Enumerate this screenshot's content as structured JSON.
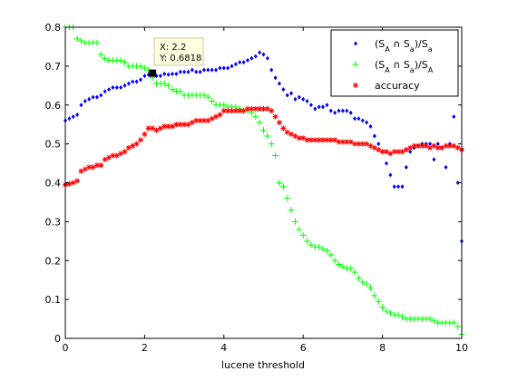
{
  "chart_data": {
    "type": "scatter",
    "xlabel": "lucene threshold",
    "xlim": [
      0,
      10
    ],
    "ylim": [
      0,
      0.8
    ],
    "xticks": [
      0,
      2,
      4,
      6,
      8,
      10
    ],
    "yticks": [
      0,
      0.1,
      0.2,
      0.3,
      0.4,
      0.5,
      0.6,
      0.7,
      0.8
    ],
    "legend_position": "top-right",
    "series": [
      {
        "name": "(S_A ∩ S_a)/S_a",
        "color": "#0000ff",
        "marker": "diamond",
        "x": [
          0.0,
          0.1,
          0.2,
          0.3,
          0.4,
          0.5,
          0.6,
          0.7,
          0.8,
          0.9,
          1.0,
          1.1,
          1.2,
          1.3,
          1.4,
          1.5,
          1.6,
          1.7,
          1.8,
          1.9,
          2.0,
          2.1,
          2.2,
          2.3,
          2.4,
          2.5,
          2.6,
          2.7,
          2.8,
          2.9,
          3.0,
          3.1,
          3.2,
          3.3,
          3.4,
          3.5,
          3.6,
          3.7,
          3.8,
          3.9,
          4.0,
          4.1,
          4.2,
          4.3,
          4.4,
          4.5,
          4.6,
          4.7,
          4.8,
          4.9,
          5.0,
          5.1,
          5.2,
          5.3,
          5.4,
          5.5,
          5.6,
          5.7,
          5.8,
          5.9,
          6.0,
          6.1,
          6.2,
          6.3,
          6.4,
          6.5,
          6.6,
          6.7,
          6.8,
          6.9,
          7.0,
          7.1,
          7.2,
          7.3,
          7.4,
          7.5,
          7.6,
          7.7,
          7.8,
          7.9,
          8.0,
          8.1,
          8.2,
          8.3,
          8.4,
          8.5,
          8.6,
          8.7,
          8.8,
          8.9,
          9.0,
          9.1,
          9.2,
          9.3,
          9.4,
          9.5,
          9.6,
          9.7,
          9.8,
          9.9,
          10.0
        ],
        "y": [
          0.56,
          0.565,
          0.57,
          0.575,
          0.6,
          0.61,
          0.615,
          0.62,
          0.62,
          0.625,
          0.635,
          0.64,
          0.645,
          0.645,
          0.645,
          0.65,
          0.655,
          0.66,
          0.66,
          0.665,
          0.675,
          0.678,
          0.6818,
          0.675,
          0.675,
          0.68,
          0.678,
          0.68,
          0.68,
          0.685,
          0.685,
          0.685,
          0.69,
          0.685,
          0.685,
          0.69,
          0.69,
          0.69,
          0.69,
          0.695,
          0.695,
          0.695,
          0.7,
          0.705,
          0.71,
          0.71,
          0.715,
          0.72,
          0.725,
          0.735,
          0.73,
          0.72,
          0.69,
          0.67,
          0.655,
          0.64,
          0.625,
          0.63,
          0.615,
          0.62,
          0.615,
          0.61,
          0.6,
          0.59,
          0.595,
          0.595,
          0.6,
          0.585,
          0.58,
          0.585,
          0.585,
          0.585,
          0.58,
          0.565,
          0.565,
          0.56,
          0.555,
          0.545,
          0.52,
          0.5,
          0.48,
          0.45,
          0.42,
          0.39,
          0.39,
          0.39,
          0.44,
          0.48,
          0.49,
          0.495,
          0.5,
          0.5,
          0.5,
          0.46,
          0.5,
          0.49,
          0.44,
          0.5,
          0.57,
          0.4,
          0.25
        ]
      },
      {
        "name": "(S_A ∩ S_a)/S_A",
        "color": "#00ff00",
        "marker": "plus",
        "x": [
          0.0,
          0.1,
          0.2,
          0.3,
          0.4,
          0.5,
          0.6,
          0.7,
          0.8,
          0.9,
          1.0,
          1.1,
          1.2,
          1.3,
          1.4,
          1.5,
          1.6,
          1.7,
          1.8,
          1.9,
          2.0,
          2.1,
          2.2,
          2.3,
          2.4,
          2.5,
          2.6,
          2.7,
          2.8,
          2.9,
          3.0,
          3.1,
          3.2,
          3.3,
          3.4,
          3.5,
          3.6,
          3.7,
          3.8,
          3.9,
          4.0,
          4.1,
          4.2,
          4.3,
          4.4,
          4.5,
          4.6,
          4.7,
          4.8,
          4.9,
          5.0,
          5.1,
          5.2,
          5.3,
          5.4,
          5.5,
          5.6,
          5.7,
          5.8,
          5.9,
          6.0,
          6.1,
          6.2,
          6.3,
          6.4,
          6.5,
          6.6,
          6.7,
          6.8,
          6.9,
          7.0,
          7.1,
          7.2,
          7.3,
          7.4,
          7.5,
          7.6,
          7.7,
          7.8,
          7.9,
          8.0,
          8.1,
          8.2,
          8.3,
          8.4,
          8.5,
          8.6,
          8.7,
          8.8,
          8.9,
          9.0,
          9.1,
          9.2,
          9.3,
          9.4,
          9.5,
          9.6,
          9.7,
          9.8,
          9.9,
          10.0
        ],
        "y": [
          0.8,
          0.8,
          0.8,
          0.77,
          0.765,
          0.76,
          0.76,
          0.76,
          0.76,
          0.73,
          0.72,
          0.715,
          0.715,
          0.715,
          0.715,
          0.71,
          0.7,
          0.7,
          0.7,
          0.7,
          0.695,
          0.69,
          0.67,
          0.655,
          0.655,
          0.655,
          0.65,
          0.64,
          0.635,
          0.635,
          0.625,
          0.625,
          0.625,
          0.625,
          0.625,
          0.625,
          0.62,
          0.61,
          0.6,
          0.6,
          0.6,
          0.595,
          0.595,
          0.595,
          0.59,
          0.585,
          0.585,
          0.58,
          0.57,
          0.555,
          0.535,
          0.52,
          0.5,
          0.47,
          0.4,
          0.39,
          0.36,
          0.33,
          0.3,
          0.28,
          0.265,
          0.25,
          0.24,
          0.235,
          0.235,
          0.23,
          0.225,
          0.215,
          0.2,
          0.19,
          0.185,
          0.18,
          0.18,
          0.17,
          0.155,
          0.145,
          0.14,
          0.13,
          0.11,
          0.095,
          0.08,
          0.07,
          0.065,
          0.06,
          0.06,
          0.055,
          0.05,
          0.05,
          0.05,
          0.05,
          0.05,
          0.05,
          0.05,
          0.045,
          0.04,
          0.04,
          0.04,
          0.04,
          0.04,
          0.03,
          0.01
        ]
      },
      {
        "name": "accuracy",
        "color": "#ff0000",
        "marker": "asterisk",
        "x": [
          0.0,
          0.1,
          0.2,
          0.3,
          0.4,
          0.5,
          0.6,
          0.7,
          0.8,
          0.9,
          1.0,
          1.1,
          1.2,
          1.3,
          1.4,
          1.5,
          1.6,
          1.7,
          1.8,
          1.9,
          2.0,
          2.1,
          2.2,
          2.3,
          2.4,
          2.5,
          2.6,
          2.7,
          2.8,
          2.9,
          3.0,
          3.1,
          3.2,
          3.3,
          3.4,
          3.5,
          3.6,
          3.7,
          3.8,
          3.9,
          4.0,
          4.1,
          4.2,
          4.3,
          4.4,
          4.5,
          4.6,
          4.7,
          4.8,
          4.9,
          5.0,
          5.1,
          5.2,
          5.3,
          5.4,
          5.5,
          5.6,
          5.7,
          5.8,
          5.9,
          6.0,
          6.1,
          6.2,
          6.3,
          6.4,
          6.5,
          6.6,
          6.7,
          6.8,
          6.9,
          7.0,
          7.1,
          7.2,
          7.3,
          7.4,
          7.5,
          7.6,
          7.7,
          7.8,
          7.9,
          8.0,
          8.1,
          8.2,
          8.3,
          8.4,
          8.5,
          8.6,
          8.7,
          8.8,
          8.9,
          9.0,
          9.1,
          9.2,
          9.3,
          9.4,
          9.5,
          9.6,
          9.7,
          9.8,
          9.9,
          10.0
        ],
        "y": [
          0.395,
          0.397,
          0.4,
          0.405,
          0.43,
          0.435,
          0.44,
          0.44,
          0.445,
          0.445,
          0.46,
          0.465,
          0.47,
          0.47,
          0.475,
          0.48,
          0.49,
          0.495,
          0.5,
          0.51,
          0.525,
          0.54,
          0.54,
          0.535,
          0.54,
          0.545,
          0.545,
          0.545,
          0.55,
          0.55,
          0.55,
          0.55,
          0.555,
          0.56,
          0.56,
          0.56,
          0.56,
          0.565,
          0.57,
          0.575,
          0.585,
          0.585,
          0.585,
          0.585,
          0.585,
          0.585,
          0.59,
          0.59,
          0.59,
          0.59,
          0.59,
          0.59,
          0.585,
          0.57,
          0.555,
          0.54,
          0.53,
          0.525,
          0.52,
          0.515,
          0.515,
          0.51,
          0.51,
          0.51,
          0.51,
          0.51,
          0.51,
          0.51,
          0.51,
          0.505,
          0.505,
          0.505,
          0.505,
          0.5,
          0.5,
          0.5,
          0.5,
          0.495,
          0.49,
          0.485,
          0.48,
          0.48,
          0.475,
          0.48,
          0.48,
          0.48,
          0.485,
          0.49,
          0.495,
          0.495,
          0.495,
          0.495,
          0.49,
          0.495,
          0.49,
          0.49,
          0.495,
          0.495,
          0.495,
          0.49,
          0.485
        ]
      }
    ],
    "datatip": {
      "x_text": "X: 2.2",
      "y_text": "Y: 0.6818",
      "x": 2.2,
      "y": 0.6818
    }
  }
}
